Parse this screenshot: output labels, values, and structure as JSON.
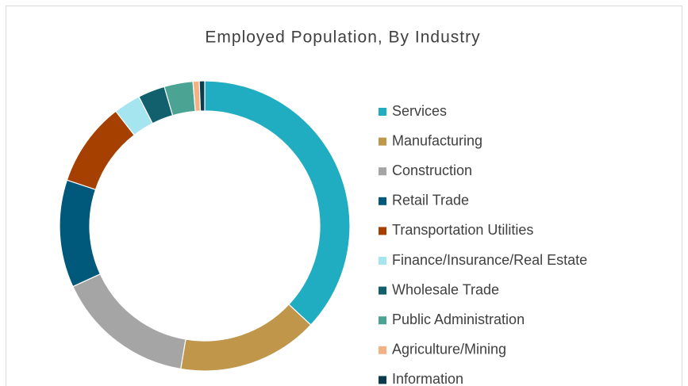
{
  "chart_data": {
    "type": "donut",
    "title": "Employed Population, By Industry",
    "categories": [
      "Services",
      "Manufacturing",
      "Construction",
      "Retail Trade",
      "Transportation Utilities",
      "Finance/Insurance/Real Estate",
      "Wholesale Trade",
      "Public Administration",
      "Agriculture/Mining",
      "Information"
    ],
    "values": [
      37,
      15.7,
      15.5,
      12,
      9.4,
      3,
      3,
      3.2,
      0.7,
      0.6
    ],
    "colors": [
      "#21adc1",
      "#c0964b",
      "#a5a5a5",
      "#00587a",
      "#a64000",
      "#a4e5ef",
      "#125f6e",
      "#4aa393",
      "#f4b183",
      "#0b3b4f"
    ],
    "legend": "right"
  }
}
